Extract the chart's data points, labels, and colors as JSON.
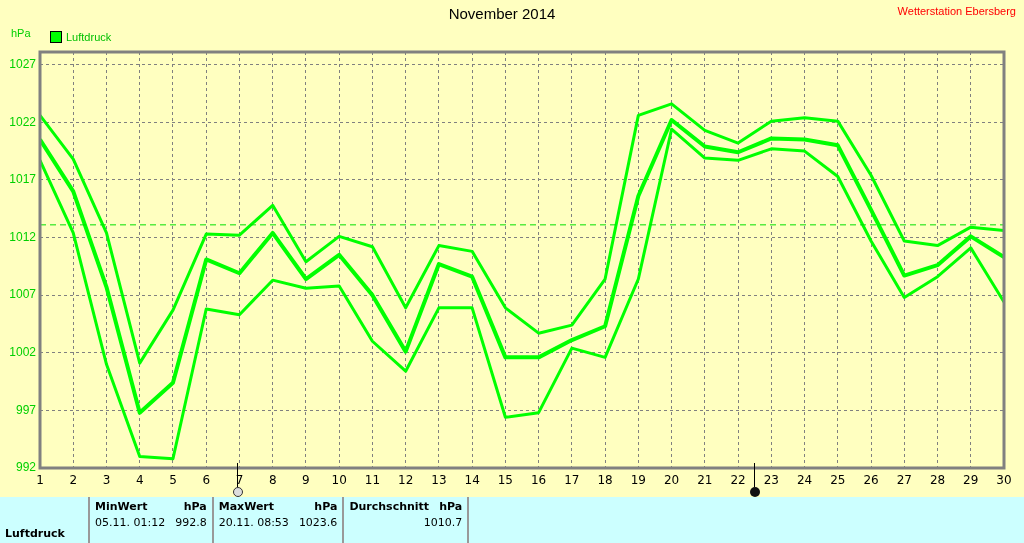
{
  "chart_data": {
    "type": "line",
    "title": "November 2014",
    "subtitle": "Wetterstation Ebersberg",
    "ylabel": "hPa",
    "x": [
      1,
      2,
      3,
      4,
      5,
      6,
      7,
      8,
      9,
      10,
      11,
      12,
      13,
      14,
      15,
      16,
      17,
      18,
      19,
      20,
      21,
      22,
      23,
      24,
      25,
      26,
      27,
      28,
      29,
      30
    ],
    "series": [
      {
        "color": "#00ff00",
        "values": [
          1022.6,
          1018.8,
          1012.4,
          1001.1,
          1005.7,
          1012.3,
          1012.2,
          1014.8,
          1009.9,
          1012.1,
          1011.2,
          1005.9,
          1011.3,
          1010.8,
          1005.9,
          1003.7,
          1004.4,
          1008.4,
          1022.6,
          1023.6,
          1021.3,
          1020.2,
          1022.1,
          1022.4,
          1022.1,
          1017.4,
          1011.7,
          1011.3,
          1012.9,
          1012.6
        ]
      },
      {
        "name": "Luftdruck",
        "color": "#00ff00",
        "values": [
          1020.5,
          1016.0,
          1007.7,
          996.8,
          999.4,
          1010.1,
          1008.9,
          1012.4,
          1008.4,
          1010.5,
          1007.0,
          1002.1,
          1009.7,
          1008.6,
          1001.6,
          1001.6,
          1003.1,
          1004.3,
          1015.6,
          1022.2,
          1019.9,
          1019.4,
          1020.6,
          1020.5,
          1020.0,
          1014.4,
          1008.7,
          1009.6,
          1012.1,
          1010.3
        ]
      },
      {
        "color": "#00ff00",
        "values": [
          1018.7,
          1012.4,
          1001.0,
          993.0,
          992.8,
          1005.8,
          1005.3,
          1008.3,
          1007.6,
          1007.8,
          1003.0,
          1000.4,
          1005.9,
          1005.9,
          996.4,
          996.8,
          1002.4,
          1001.6,
          1008.4,
          1021.4,
          1018.9,
          1018.7,
          1019.7,
          1019.5,
          1017.3,
          1011.7,
          1006.8,
          1008.6,
          1011.1,
          1006.4
        ]
      }
    ],
    "xlim": [
      1,
      30
    ],
    "xticks": [
      1,
      2,
      3,
      4,
      5,
      6,
      7,
      8,
      9,
      10,
      11,
      12,
      13,
      14,
      15,
      16,
      17,
      18,
      19,
      20,
      21,
      22,
      23,
      24,
      25,
      26,
      27,
      28,
      29,
      30
    ],
    "ylim": [
      992,
      1028.1
    ],
    "yticks": [
      992,
      997,
      1002,
      1007,
      1012,
      1017,
      1022,
      1027
    ],
    "ref_lines": [
      {
        "axis": "y",
        "value": 1013.1,
        "color": "#00e000",
        "line_style": "dashed"
      }
    ],
    "grid": true,
    "legend": "top left",
    "marker": "none",
    "line_style": "solid",
    "annotations": [
      "Luftdruck",
      "MinWert",
      "hPa",
      "05.11.  01:12",
      "992.8",
      "MaxWert",
      "hPa",
      "20.11.  08:53",
      "1023.6",
      "Durchschnitt",
      "hPa",
      "1010.7"
    ]
  }
}
